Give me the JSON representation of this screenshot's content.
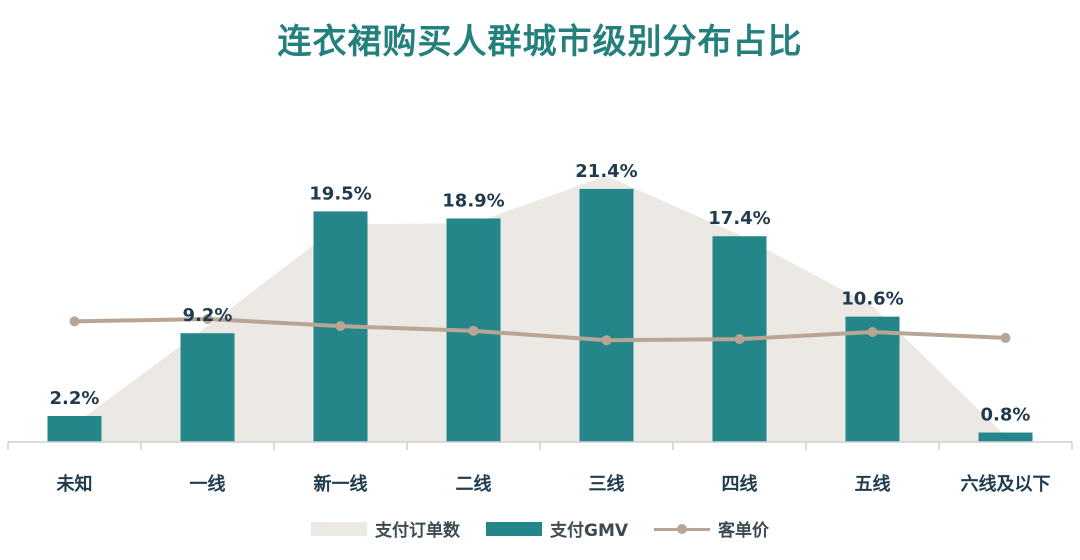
{
  "title": "连衣裙购买人群城市级别分布占比",
  "colors": {
    "title": "#24807c",
    "area": "#ece8e4",
    "bar": "#25868a",
    "line": "#b9a595",
    "text": "#1f3b4d",
    "axis": "#cfcfcf"
  },
  "legend": {
    "area": "支付订单数",
    "bar": "支付GMV",
    "line": "客单价"
  },
  "chart_data": {
    "type": "bar",
    "title": "连衣裙购买人群城市级别分布占比",
    "categories": [
      "未知",
      "一线",
      "新一线",
      "二线",
      "三线",
      "四线",
      "五线",
      "六线及以下"
    ],
    "ylim": [
      0,
      23
    ],
    "series": [
      {
        "name": "支付GMV",
        "type": "bar",
        "values": [
          2.2,
          9.2,
          19.5,
          18.9,
          21.4,
          17.4,
          10.6,
          0.8
        ],
        "labels": [
          "2.2%",
          "9.2%",
          "19.5%",
          "18.9%",
          "21.4%",
          "17.4%",
          "10.6%",
          "0.8%"
        ]
      },
      {
        "name": "支付订单数",
        "type": "area",
        "values": [
          1.5,
          9.8,
          18.4,
          18.5,
          22.5,
          17.5,
          11.5,
          0.5
        ]
      },
      {
        "name": "客单价",
        "type": "line",
        "values": [
          10.2,
          10.4,
          9.8,
          9.4,
          8.6,
          8.7,
          9.3,
          8.8
        ]
      }
    ],
    "grid": false,
    "legend_position": "bottom"
  }
}
